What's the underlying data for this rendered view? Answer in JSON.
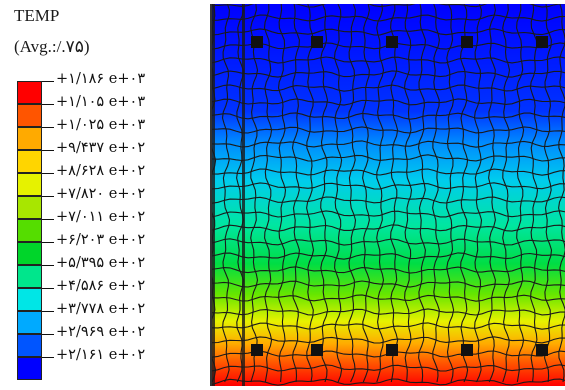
{
  "legend": {
    "title": "TEMP",
    "subtitle": "(Avg.:/.۷۵)",
    "levels": [
      {
        "label": "+۱/۱۸۶ e+۰۳",
        "color": "#ff0000"
      },
      {
        "label": "+۱/۱۰۵ e+۰۳",
        "color": "#ff5500"
      },
      {
        "label": "+۱/۰۲۵ e+۰۳",
        "color": "#ffaa00"
      },
      {
        "label": "+۹/۴۳۷ e+۰۲",
        "color": "#ffd500"
      },
      {
        "label": "+۸/۶۲۸ e+۰۲",
        "color": "#e6f200"
      },
      {
        "label": "+۷/۸۲۰ e+۰۲",
        "color": "#a8e600"
      },
      {
        "label": "+۷/۰۱۱ e+۰۲",
        "color": "#55dd00"
      },
      {
        "label": "+۶/۲۰۳ e+۰۲",
        "color": "#00d52a"
      },
      {
        "label": "+۵/۳۹۵ e+۰۲",
        "color": "#00e68c"
      },
      {
        "label": "+۴/۵۸۶ e+۰۲",
        "color": "#00e6e6"
      },
      {
        "label": "+۳/۷۷۸ e+۰۲",
        "color": "#00aaff"
      },
      {
        "label": "+۲/۹۶۹ e+۰۲",
        "color": "#0055ff"
      },
      {
        "label": "+۲/۱۶۱ e+۰۲",
        "color": "#0000ff"
      }
    ]
  },
  "contour": {
    "mesh_line_color": "#1a1a1a",
    "node_marker_color": "#111111"
  }
}
